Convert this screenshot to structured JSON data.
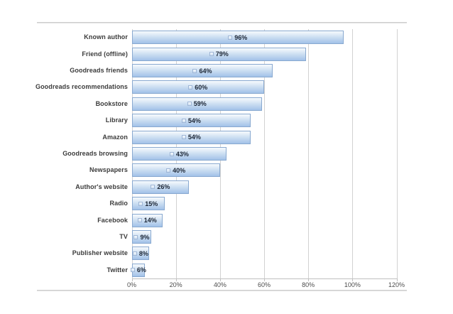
{
  "chart_data": {
    "type": "bar",
    "orientation": "horizontal",
    "title": "",
    "xlabel": "",
    "ylabel": "",
    "categories": [
      "Known author",
      "Friend (offline)",
      "Goodreads friends",
      "Goodreads recommendations",
      "Bookstore",
      "Library",
      "Amazon",
      "Goodreads browsing",
      "Newspapers",
      "Author's website",
      "Radio",
      "Facebook",
      "TV",
      "Publisher website",
      "Twitter"
    ],
    "values": [
      96,
      79,
      64,
      60,
      59,
      54,
      54,
      43,
      40,
      26,
      15,
      14,
      9,
      8,
      6
    ],
    "data_labels": [
      "96%",
      "79%",
      "64%",
      "60%",
      "59%",
      "54%",
      "54%",
      "43%",
      "40%",
      "26%",
      "15%",
      "14%",
      "9%",
      "8%",
      "6%"
    ],
    "xlim": [
      0,
      120
    ],
    "xtick_values": [
      0,
      20,
      40,
      60,
      80,
      100,
      120
    ],
    "xtick_labels": [
      "0%",
      "20%",
      "40%",
      "60%",
      "80%",
      "100%",
      "120%"
    ],
    "grid": true,
    "legend_position": "none",
    "data_label_style": "centered-with-legend-key"
  },
  "colors": {
    "background": "#ffffff",
    "bar_gradient_top": "#f7fafd",
    "bar_gradient_mid": "#cddff2",
    "bar_gradient_bottom": "#a2c1e8",
    "bar_border": "#89a9d0",
    "key_border": "#9fb6d6",
    "gridline": "#d2d2d2",
    "axis_line": "#bfbfbf",
    "frame_line": "#c4c4c4",
    "label_text": "#1c2636",
    "category_text": "#3b3b3b",
    "tick_text": "#4d4d4d"
  }
}
